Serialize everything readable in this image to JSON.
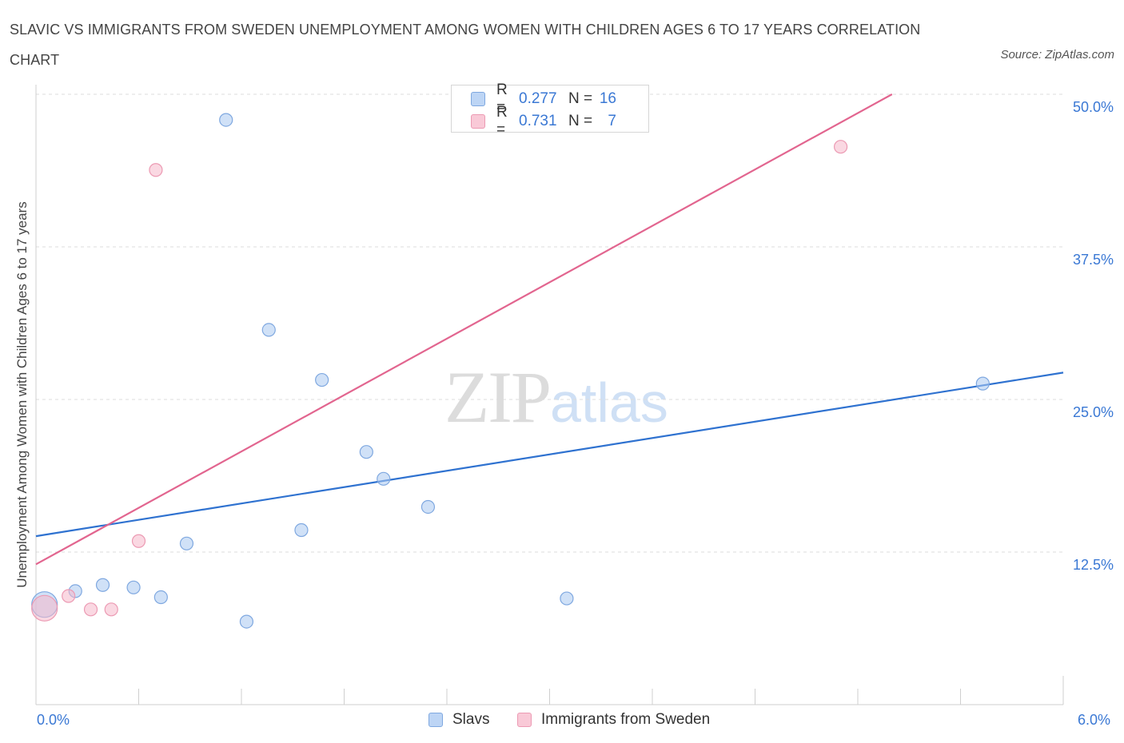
{
  "title": "SLAVIC VS IMMIGRANTS FROM SWEDEN UNEMPLOYMENT AMONG WOMEN WITH CHILDREN AGES 6 TO 17 YEARS CORRELATION CHART",
  "source": "Source: ZipAtlas.com",
  "watermark": {
    "zip": "ZIP",
    "atlas": "atlas"
  },
  "colors": {
    "slavs": "#a9c8f0",
    "slavs_line": "#2f72d0",
    "sweden": "#f5b8cb",
    "sweden_line": "#e2658f",
    "accent_text": "#3a78d4",
    "grid": "#dddddd"
  },
  "legend_top": [
    {
      "r_label": "R =",
      "r_value": "0.277",
      "n_label": "N =",
      "n_value": "16"
    },
    {
      "r_label": "R =",
      "r_value": "0.731",
      "n_label": "N =",
      "n_value": "7"
    }
  ],
  "legend_bottom": [
    "Slavs",
    "Immigrants from Sweden"
  ],
  "chart_data": {
    "type": "scatter",
    "title": "SLAVIC VS IMMIGRANTS FROM SWEDEN UNEMPLOYMENT AMONG WOMEN WITH CHILDREN AGES 6 TO 17 YEARS CORRELATION CHART",
    "xlabel": "",
    "ylabel": "Unemployment Among Women with Children Ages 6 to 17 years",
    "xlim": [
      0,
      6
    ],
    "ylim": [
      0,
      50
    ],
    "x_tick_labels": [
      "0.0%",
      "6.0%"
    ],
    "y_tick_labels": [
      "12.5%",
      "25.0%",
      "37.5%",
      "50.0%"
    ],
    "y_ticks": [
      12.5,
      25.0,
      37.5,
      50.0
    ],
    "grid": true,
    "legend_position": "top-center",
    "series": [
      {
        "name": "Slavs",
        "r": 0.277,
        "n": 16,
        "points": [
          {
            "x": 0.05,
            "y": 8.2,
            "size": "large"
          },
          {
            "x": 0.23,
            "y": 9.3
          },
          {
            "x": 0.39,
            "y": 9.8
          },
          {
            "x": 0.57,
            "y": 9.6
          },
          {
            "x": 0.73,
            "y": 8.8
          },
          {
            "x": 0.88,
            "y": 13.2
          },
          {
            "x": 1.11,
            "y": 47.9
          },
          {
            "x": 1.23,
            "y": 6.8
          },
          {
            "x": 1.36,
            "y": 30.7
          },
          {
            "x": 1.55,
            "y": 14.3
          },
          {
            "x": 1.67,
            "y": 26.6
          },
          {
            "x": 1.93,
            "y": 20.7
          },
          {
            "x": 2.03,
            "y": 18.5
          },
          {
            "x": 2.29,
            "y": 16.2
          },
          {
            "x": 3.1,
            "y": 8.7
          },
          {
            "x": 5.53,
            "y": 26.3
          }
        ],
        "trend": {
          "x0": 0.0,
          "y0": 13.8,
          "x1": 6.0,
          "y1": 27.2
        }
      },
      {
        "name": "Immigrants from Sweden",
        "r": 0.731,
        "n": 7,
        "points": [
          {
            "x": 0.05,
            "y": 7.9,
            "size": "large"
          },
          {
            "x": 0.19,
            "y": 8.9
          },
          {
            "x": 0.32,
            "y": 7.8
          },
          {
            "x": 0.44,
            "y": 7.8
          },
          {
            "x": 0.6,
            "y": 13.4
          },
          {
            "x": 0.7,
            "y": 43.8
          },
          {
            "x": 4.7,
            "y": 45.7
          }
        ],
        "trend": {
          "x0": 0.0,
          "y0": 11.5,
          "x1": 5.0,
          "y1": 50.0
        }
      }
    ]
  }
}
